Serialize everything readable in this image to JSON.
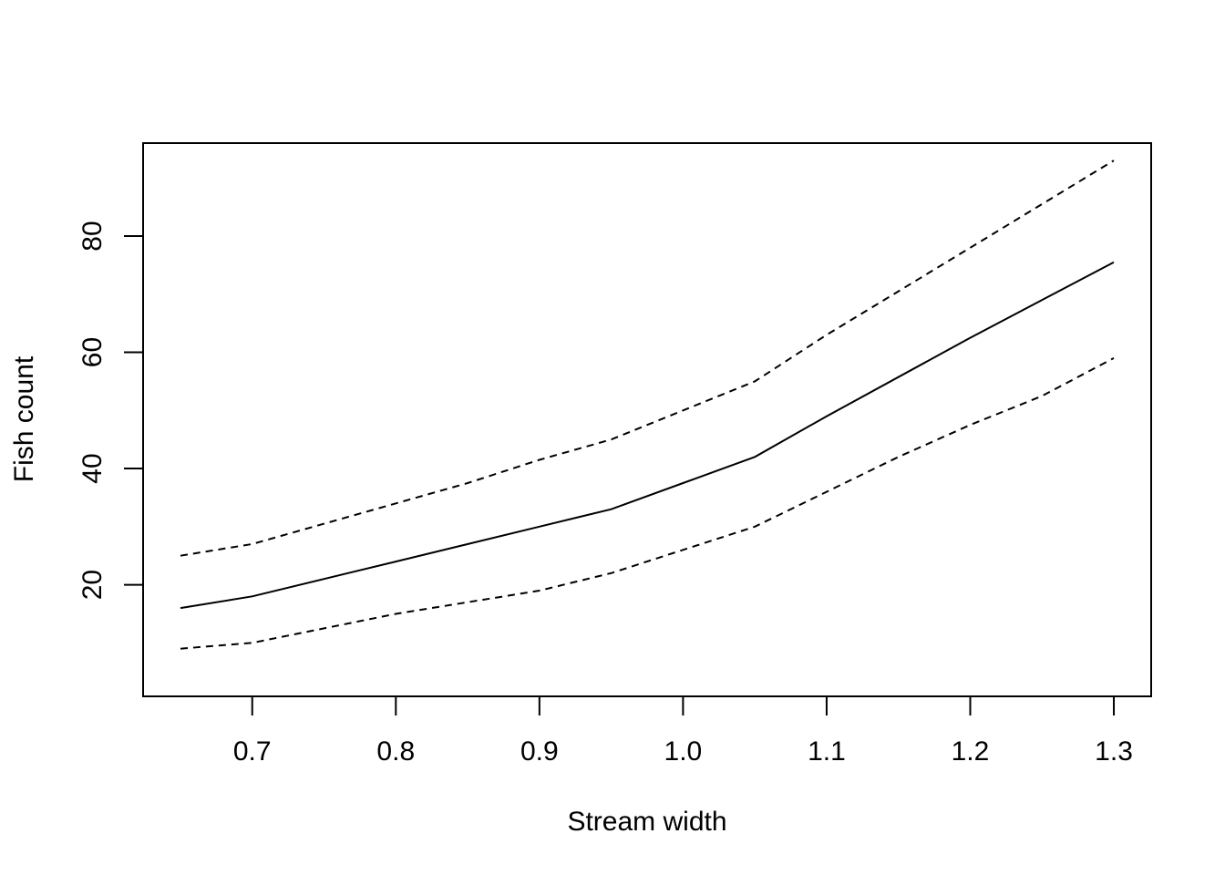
{
  "chart_data": {
    "type": "line",
    "xlabel": "Stream width",
    "ylabel": "Fish count",
    "xlim": [
      0.624,
      1.326
    ],
    "ylim": [
      0.8,
      96.0
    ],
    "x_ticks": [
      {
        "value": 0.7,
        "label": "0.7"
      },
      {
        "value": 0.8,
        "label": "0.8"
      },
      {
        "value": 0.9,
        "label": "0.9"
      },
      {
        "value": 1.0,
        "label": "1.0"
      },
      {
        "value": 1.1,
        "label": "1.1"
      },
      {
        "value": 1.2,
        "label": "1.2"
      },
      {
        "value": 1.3,
        "label": "1.3"
      }
    ],
    "y_ticks": [
      {
        "value": 20,
        "label": "20"
      },
      {
        "value": 40,
        "label": "40"
      },
      {
        "value": 60,
        "label": "60"
      },
      {
        "value": 80,
        "label": "80"
      }
    ],
    "grid": false,
    "legend": "none",
    "series": [
      {
        "style": "dashed",
        "color": "#000000",
        "points": [
          [
            0.65,
            25
          ],
          [
            0.7,
            27
          ],
          [
            0.75,
            30.5
          ],
          [
            0.8,
            34
          ],
          [
            0.85,
            37.5
          ],
          [
            0.9,
            41.5
          ],
          [
            0.95,
            45
          ],
          [
            1.0,
            50
          ],
          [
            1.05,
            55
          ],
          [
            1.1,
            63
          ],
          [
            1.15,
            70.5
          ],
          [
            1.2,
            78
          ],
          [
            1.25,
            85.5
          ],
          [
            1.3,
            93
          ]
        ]
      },
      {
        "style": "solid",
        "color": "#000000",
        "points": [
          [
            0.65,
            16
          ],
          [
            0.7,
            18
          ],
          [
            0.8,
            24
          ],
          [
            0.9,
            30
          ],
          [
            0.95,
            33
          ],
          [
            1.0,
            37.5
          ],
          [
            1.05,
            42
          ],
          [
            1.1,
            49
          ],
          [
            1.2,
            62.5
          ],
          [
            1.3,
            75.5
          ]
        ]
      },
      {
        "style": "dashed",
        "color": "#000000",
        "points": [
          [
            0.65,
            9
          ],
          [
            0.7,
            10
          ],
          [
            0.75,
            12.5
          ],
          [
            0.8,
            15
          ],
          [
            0.85,
            17
          ],
          [
            0.9,
            19
          ],
          [
            0.95,
            22
          ],
          [
            1.0,
            26
          ],
          [
            1.05,
            30
          ],
          [
            1.1,
            36
          ],
          [
            1.15,
            42
          ],
          [
            1.2,
            47.5
          ],
          [
            1.25,
            52.5
          ],
          [
            1.3,
            59
          ]
        ]
      }
    ]
  }
}
